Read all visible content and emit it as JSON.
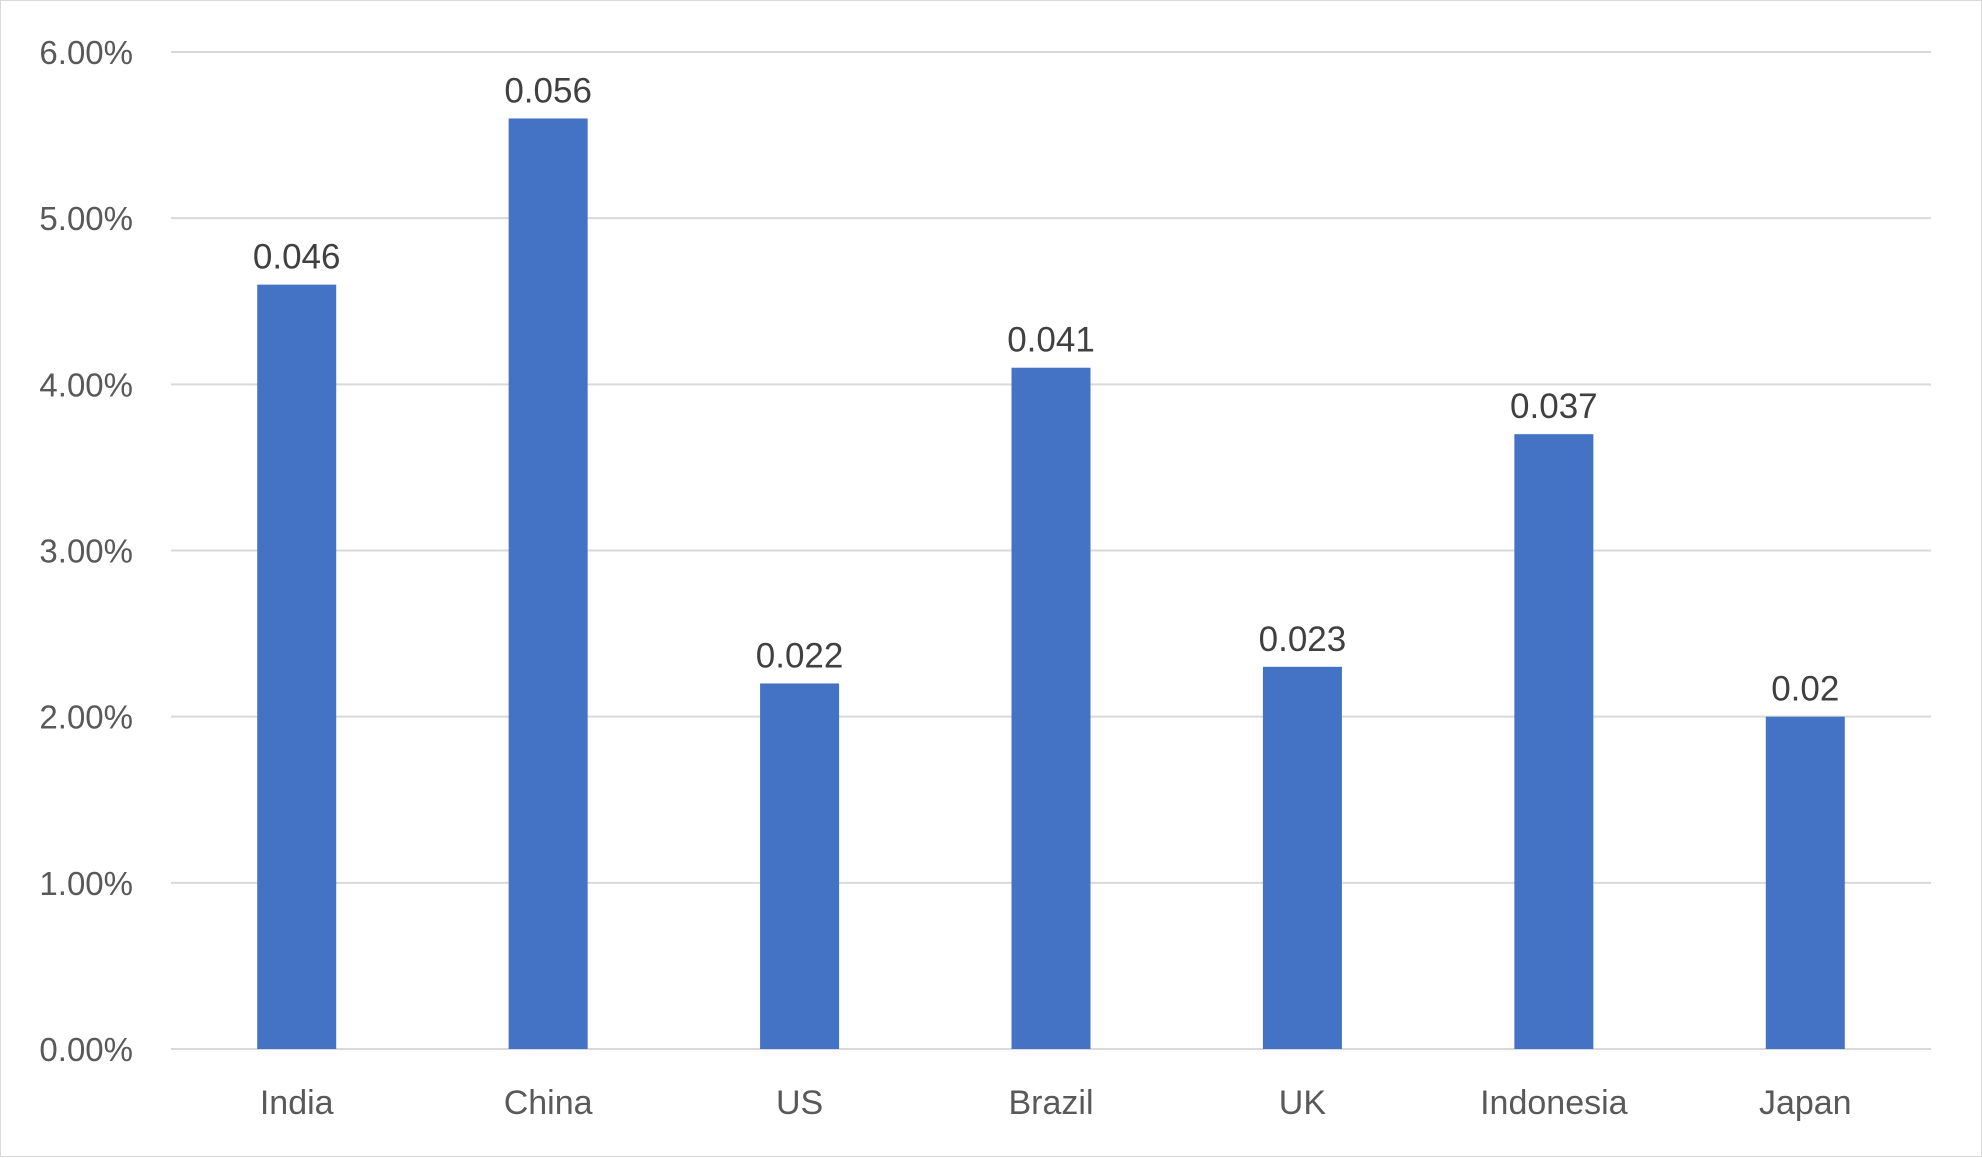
{
  "chart_data": {
    "type": "bar",
    "title": "",
    "xlabel": "",
    "ylabel": "",
    "categories": [
      "India",
      "China",
      "US",
      "Brazil",
      "UK",
      "Indonesia",
      "Japan"
    ],
    "values": [
      0.046,
      0.056,
      0.022,
      0.041,
      0.023,
      0.037,
      0.02
    ],
    "data_labels": [
      "0.046",
      "0.056",
      "0.022",
      "0.041",
      "0.023",
      "0.037",
      "0.02"
    ],
    "ylim": [
      0,
      0.06
    ],
    "yticks": [
      0,
      0.01,
      0.02,
      0.03,
      0.04,
      0.05,
      0.06
    ],
    "ytick_labels": [
      "0.00%",
      "1.00%",
      "2.00%",
      "3.00%",
      "4.00%",
      "5.00%",
      "6.00%"
    ],
    "grid": true,
    "legend": false,
    "bar_color": "#4472c4",
    "grid_color": "#d9d9d9",
    "text_color": "#595959"
  }
}
